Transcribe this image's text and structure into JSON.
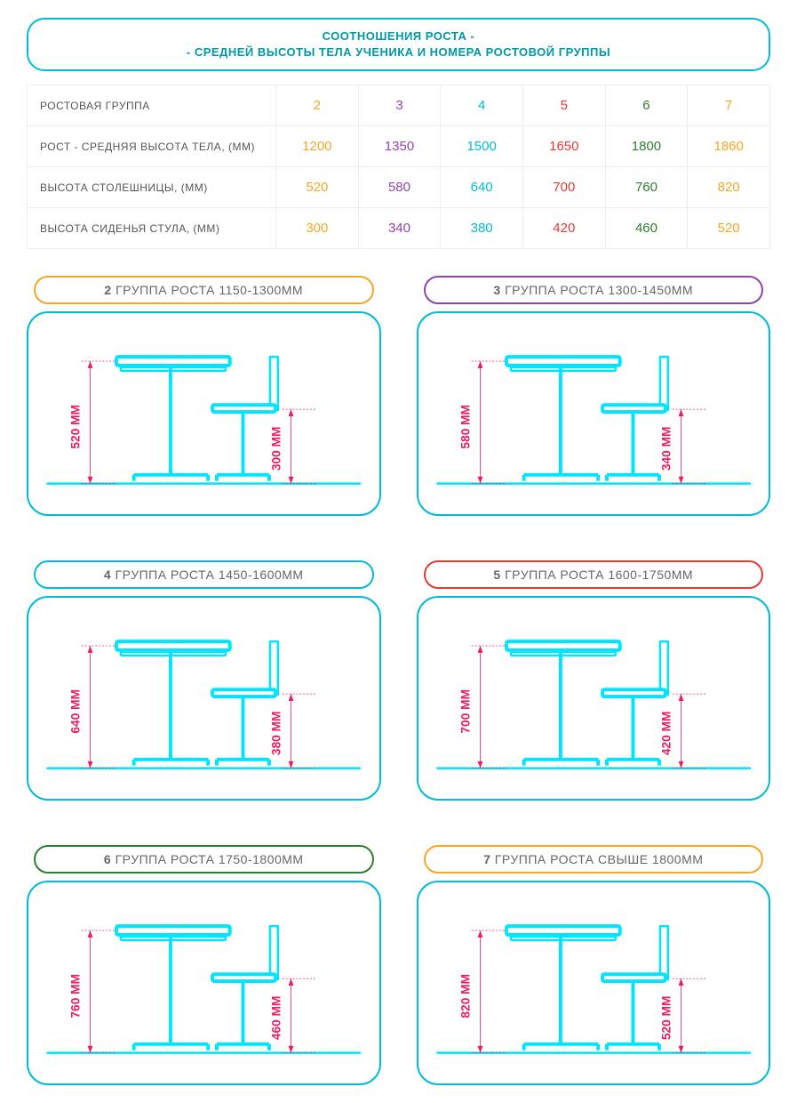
{
  "header": {
    "line1": "СООТНОШЕНИЯ РОСТА -",
    "line2": "- СРЕДНЕЙ ВЫСОТЫ ТЕЛА УЧЕНИКА И НОМЕРА РОСТОВОЙ ГРУППЫ"
  },
  "table": {
    "row_labels": [
      "РОСТОВАЯ ГРУППА",
      "РОСТ - СРЕДНЯЯ ВЫСОТА ТЕЛА, (ММ)",
      "ВЫСОТА СТОЛЕШНИЦЫ, (ММ)",
      "ВЫСОТА СИДЕНЬЯ СТУЛА, (ММ)"
    ],
    "groups": [
      {
        "num": "2",
        "height": "1200",
        "desk": "520",
        "seat": "300",
        "color": "#f5a623"
      },
      {
        "num": "3",
        "height": "1350",
        "desk": "580",
        "seat": "340",
        "color": "#8e44ad"
      },
      {
        "num": "4",
        "height": "1500",
        "desk": "640",
        "seat": "380",
        "color": "#00bcd4"
      },
      {
        "num": "5",
        "height": "1650",
        "desk": "700",
        "seat": "420",
        "color": "#e53935"
      },
      {
        "num": "6",
        "height": "1800",
        "desk": "760",
        "seat": "460",
        "color": "#2e7d32"
      },
      {
        "num": "7",
        "height": "1860",
        "desk": "820",
        "seat": "520",
        "color": "#f5a623"
      }
    ]
  },
  "panels": [
    {
      "num": "2",
      "title": "ГРУППА РОСТА 1150-1300ММ",
      "desk": "520 ММ",
      "seat": "300 ММ",
      "border": "#f5a623"
    },
    {
      "num": "3",
      "title": "ГРУППА РОСТА 1300-1450ММ",
      "desk": "580 ММ",
      "seat": "340 ММ",
      "border": "#8e44ad"
    },
    {
      "num": "4",
      "title": "ГРУППА РОСТА 1450-1600ММ",
      "desk": "640 ММ",
      "seat": "380 ММ",
      "border": "#00bcd4"
    },
    {
      "num": "5",
      "title": "ГРУППА РОСТА 1600-1750ММ",
      "desk": "700 ММ",
      "seat": "420 ММ",
      "border": "#e53935"
    },
    {
      "num": "6",
      "title": "ГРУППА РОСТА 1750-1800ММ",
      "desk": "760 ММ",
      "seat": "460 ММ",
      "border": "#2e7d32"
    },
    {
      "num": "7",
      "title": "ГРУППА РОСТА СВЫШЕ 1800ММ",
      "desk": "820 ММ",
      "seat": "520 ММ",
      "border": "#f5a623"
    }
  ],
  "style": {
    "primary_cyan": "#00bcd4",
    "furniture_stroke": "#00e5ff",
    "dimension_color": "#e91e63",
    "background": "#ffffff",
    "text_color": "#555555"
  }
}
